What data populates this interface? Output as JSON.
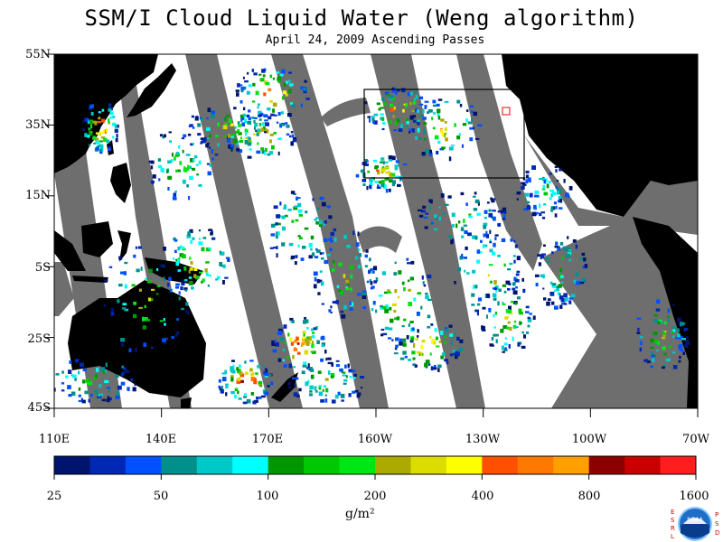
{
  "title": "SSM/I Cloud Liquid Water (Weng algorithm)",
  "subtitle": "April 24, 2009  Ascending Passes",
  "latitude_labels": [
    "55N",
    "35N",
    "15N",
    "5S",
    "25S",
    "45S"
  ],
  "longitude_labels": [
    "110E",
    "140E",
    "170E",
    "160W",
    "130W",
    "100W",
    "70W"
  ],
  "colorbar": {
    "tick_labels": [
      "25",
      "50",
      "100",
      "200",
      "400",
      "800",
      "1600"
    ],
    "colors": [
      "#00146e",
      "#0028b4",
      "#0050ff",
      "#00908c",
      "#00c8c8",
      "#00ffff",
      "#009600",
      "#00c800",
      "#00e614",
      "#aaaa00",
      "#dcdc00",
      "#ffff00",
      "#ff5000",
      "#ff7800",
      "#ffa000",
      "#8c0000",
      "#c80000",
      "#ff1e1e"
    ],
    "units": "g/m²"
  },
  "colors": {
    "land": "#000000",
    "no_data": "#6e6e6e",
    "background": "#ffffff",
    "box": "#000000"
  },
  "logo": {
    "left_letters": "ESRL",
    "right_letters": "PSD",
    "emblem_text": "NOAA"
  }
}
